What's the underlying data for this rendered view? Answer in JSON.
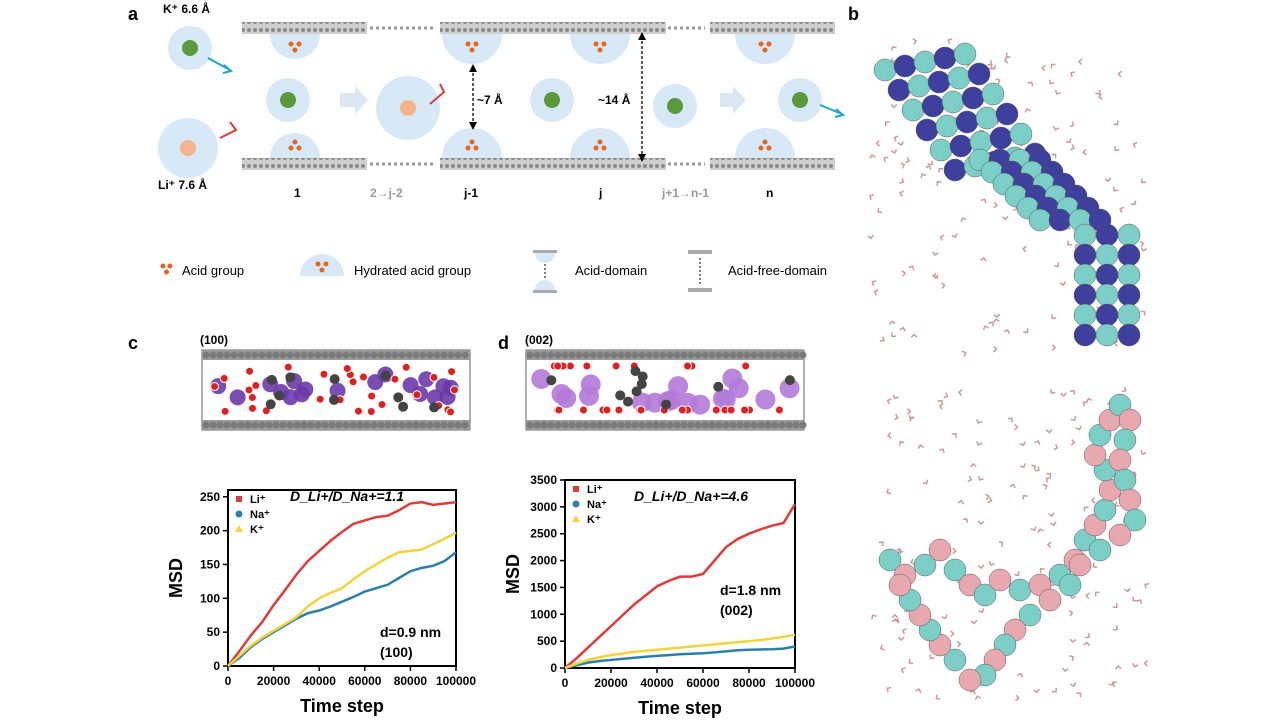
{
  "panel_letters": {
    "a": "a",
    "b": "b",
    "c": "c",
    "d": "d"
  },
  "panel_a": {
    "k_label": "K⁺  6.6 Å",
    "li_label": "Li⁺ 7.6 Å",
    "dist_small": "~7 Å",
    "dist_large": "~14 Å",
    "steps": [
      "1",
      "2→j-2",
      "j-1",
      "j",
      "j+1→n-1",
      "n"
    ],
    "legend": [
      "Acid group",
      "Hydrated acid group",
      "Acid-domain",
      "Acid-free-domain"
    ]
  },
  "panel_c": {
    "structure_label": "(100)",
    "ratio": "D_Li+/D_Na+=1.1",
    "annotation_line1": "d=0.9 nm",
    "annotation_line2": "(100)"
  },
  "panel_d": {
    "structure_label": "(002)",
    "ratio": "D_Li+/D_Na+=4.6",
    "annotation_line1": "d=1.8 nm",
    "annotation_line2": "(002)"
  },
  "colors": {
    "li": "#e03a3a",
    "na": "#2b7fa8",
    "k": "#f2d33c",
    "halo": "#d7e9f7"
  },
  "chart_data": [
    {
      "type": "line",
      "xlabel": "Time step",
      "ylabel": "MSD",
      "xlim": [
        0,
        100000
      ],
      "ylim": [
        0,
        260
      ],
      "xticks": [
        0,
        20000,
        40000,
        60000,
        80000,
        100000
      ],
      "yticks": [
        0,
        50,
        100,
        150,
        200,
        250
      ],
      "legend_position": "top-left",
      "series": [
        {
          "name": "Li⁺",
          "color": "#e03a3a",
          "x": [
            0,
            5000,
            10000,
            15000,
            20000,
            25000,
            30000,
            35000,
            40000,
            45000,
            50000,
            55000,
            60000,
            65000,
            70000,
            75000,
            80000,
            85000,
            90000,
            95000,
            100000
          ],
          "values": [
            0,
            22,
            45,
            65,
            90,
            112,
            135,
            155,
            170,
            185,
            198,
            210,
            215,
            220,
            222,
            230,
            240,
            242,
            238,
            240,
            242
          ]
        },
        {
          "name": "Na⁺",
          "color": "#2b7fa8",
          "x": [
            0,
            5000,
            10000,
            15000,
            20000,
            25000,
            30000,
            35000,
            40000,
            45000,
            50000,
            55000,
            60000,
            65000,
            70000,
            75000,
            80000,
            85000,
            90000,
            95000,
            100000
          ],
          "values": [
            0,
            12,
            28,
            40,
            50,
            60,
            70,
            78,
            82,
            88,
            95,
            102,
            110,
            115,
            120,
            130,
            140,
            145,
            148,
            155,
            168
          ]
        },
        {
          "name": "K⁺",
          "color": "#f2d33c",
          "x": [
            0,
            5000,
            10000,
            15000,
            20000,
            25000,
            30000,
            35000,
            40000,
            45000,
            50000,
            55000,
            60000,
            65000,
            70000,
            75000,
            80000,
            85000,
            90000,
            95000,
            100000
          ],
          "values": [
            0,
            15,
            30,
            42,
            52,
            62,
            72,
            88,
            100,
            108,
            115,
            128,
            140,
            150,
            160,
            168,
            170,
            172,
            180,
            188,
            197
          ]
        }
      ]
    },
    {
      "type": "line",
      "xlabel": "Time step",
      "ylabel": "MSD",
      "xlim": [
        0,
        100000
      ],
      "ylim": [
        0,
        3500
      ],
      "xticks": [
        0,
        20000,
        40000,
        60000,
        80000,
        100000
      ],
      "yticks": [
        0,
        500,
        1000,
        1500,
        2000,
        2500,
        3000,
        3500
      ],
      "legend_position": "top-left",
      "series": [
        {
          "name": "Li⁺",
          "color": "#e03a3a",
          "x": [
            0,
            5000,
            10000,
            15000,
            20000,
            25000,
            30000,
            35000,
            40000,
            45000,
            50000,
            55000,
            60000,
            65000,
            70000,
            75000,
            80000,
            85000,
            90000,
            95000,
            100000
          ],
          "values": [
            0,
            180,
            380,
            580,
            780,
            980,
            1180,
            1350,
            1520,
            1620,
            1700,
            1700,
            1750,
            2000,
            2250,
            2400,
            2500,
            2580,
            2650,
            2700,
            3050
          ]
        },
        {
          "name": "Na⁺",
          "color": "#2b7fa8",
          "x": [
            0,
            5000,
            10000,
            15000,
            20000,
            25000,
            30000,
            35000,
            40000,
            45000,
            50000,
            55000,
            60000,
            65000,
            70000,
            75000,
            80000,
            85000,
            90000,
            95000,
            100000
          ],
          "values": [
            0,
            50,
            100,
            130,
            150,
            170,
            190,
            210,
            225,
            240,
            255,
            265,
            275,
            290,
            310,
            330,
            340,
            345,
            350,
            360,
            400
          ]
        },
        {
          "name": "K⁺",
          "color": "#f2d33c",
          "x": [
            0,
            5000,
            10000,
            15000,
            20000,
            25000,
            30000,
            35000,
            40000,
            45000,
            50000,
            55000,
            60000,
            65000,
            70000,
            75000,
            80000,
            85000,
            90000,
            95000,
            100000
          ],
          "values": [
            0,
            80,
            150,
            200,
            240,
            270,
            300,
            320,
            340,
            360,
            380,
            400,
            420,
            440,
            460,
            480,
            500,
            520,
            550,
            580,
            620
          ]
        }
      ]
    }
  ]
}
